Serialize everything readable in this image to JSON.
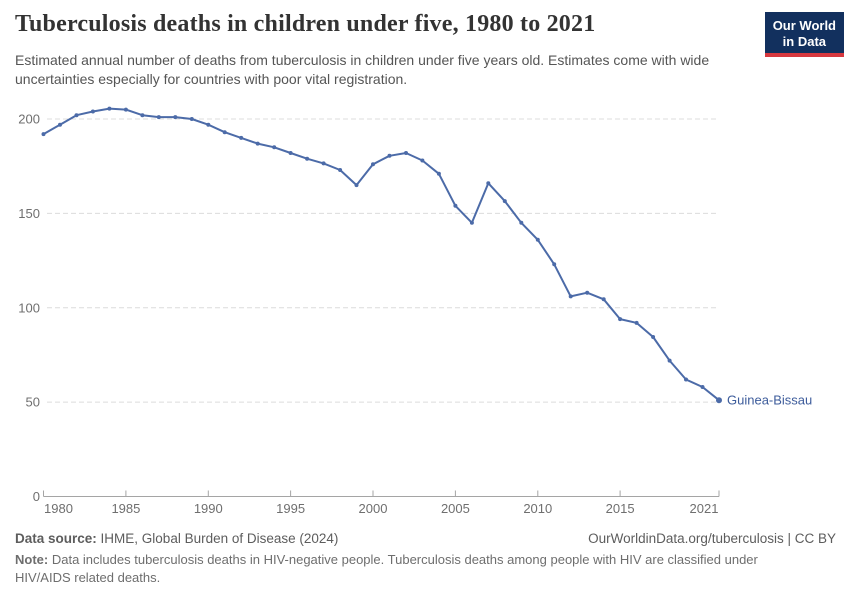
{
  "header": {
    "title": "Tuberculosis deaths in children under five, 1980 to 2021",
    "subtitle": "Estimated annual number of deaths from tuberculosis in children under five years old. Estimates come with wide uncertainties especially for countries with poor vital registration.",
    "logo": {
      "line1": "Our World",
      "line2": "in Data"
    }
  },
  "chart_data": {
    "type": "line",
    "title": "Tuberculosis deaths in children under five, 1980 to 2021",
    "xlabel": "",
    "ylabel": "",
    "grid": "horizontal-dashed",
    "legend_position": "end-of-line-label",
    "ylim": [
      0,
      212
    ],
    "xlim": [
      1980,
      2021
    ],
    "yticks": [
      0,
      50,
      100,
      150,
      200
    ],
    "xticks": [
      1980,
      1985,
      1990,
      1995,
      2000,
      2005,
      2010,
      2015,
      2021
    ],
    "years": [
      1980,
      1981,
      1982,
      1983,
      1984,
      1985,
      1986,
      1987,
      1988,
      1989,
      1990,
      1991,
      1992,
      1993,
      1994,
      1995,
      1996,
      1997,
      1998,
      1999,
      2000,
      2001,
      2002,
      2003,
      2004,
      2005,
      2006,
      2007,
      2008,
      2009,
      2010,
      2011,
      2012,
      2013,
      2014,
      2015,
      2016,
      2017,
      2018,
      2019,
      2020,
      2021
    ],
    "series": [
      {
        "name": "Guinea-Bissau",
        "color": "#4C6BA8",
        "values": [
          192,
          197,
          202,
          204,
          205.5,
          205,
          202,
          201,
          201,
          200,
          197,
          193,
          190,
          187,
          185,
          182,
          179,
          176.5,
          173,
          165,
          176,
          180.5,
          182,
          178,
          171,
          154,
          145,
          166,
          156.5,
          145,
          136,
          123,
          106,
          108,
          104.5,
          94,
          92,
          84.5,
          72,
          62,
          58,
          51
        ]
      }
    ]
  },
  "footer": {
    "source_label": "Data source:",
    "source_text": "IHME, Global Burden of Disease (2024)",
    "link_text": "OurWorldinData.org/tuberculosis | CC BY",
    "note_label": "Note:",
    "note_text": "Data includes tuberculosis deaths in HIV-negative people. Tuberculosis deaths among people with HIV are classified under HIV/AIDS related deaths."
  },
  "colors": {
    "line": "#4C6BA8",
    "entity_label": "#3D5C9B",
    "grid": "#DCDCDC",
    "axis": "#A5A5A5",
    "tick_label": "#6F6F6F",
    "title": "#333333",
    "subtitle": "#555555",
    "logo_bg": "#12305E",
    "logo_bar": "#D7383F"
  }
}
